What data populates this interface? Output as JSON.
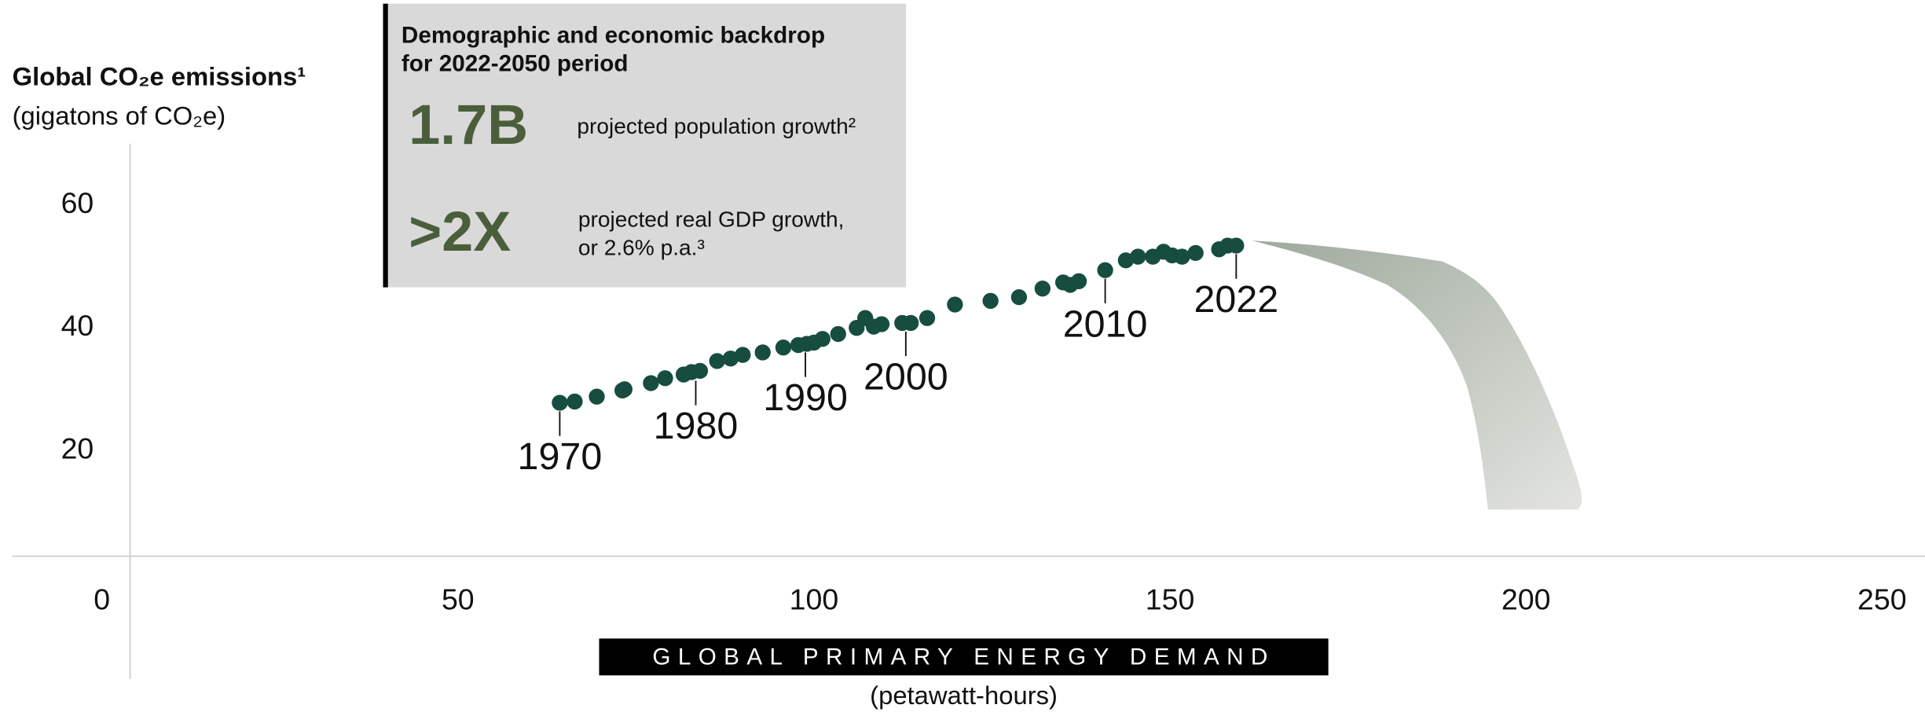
{
  "chart_data": {
    "type": "scatter",
    "y_axis_title": "Global CO₂e emissions¹",
    "y_axis_subtitle": "(gigatons of CO₂e)",
    "x_axis_title": "GLOBAL PRIMARY ENERGY DEMAND",
    "x_axis_subtitle": "(petawatt-hours)",
    "x": [
      64.3,
      66.4,
      69.5,
      73.1,
      73.4,
      77.1,
      79.1,
      81.7,
      82.8,
      84.0,
      86.4,
      88.3,
      90.0,
      92.8,
      95.7,
      97.8,
      99.0,
      100.0,
      101.2,
      103.4,
      106.0,
      107.2,
      108.4,
      109.5,
      112.4,
      113.6,
      115.9,
      119.8,
      124.8,
      128.8,
      132.1,
      135.0,
      136.0,
      137.2,
      140.9,
      143.8,
      145.5,
      147.6,
      149.1,
      150.3,
      151.7,
      153.6,
      156.9,
      158.1,
      159.3
    ],
    "values": [
      27.8,
      28.0,
      28.8,
      29.8,
      30.0,
      31.0,
      31.8,
      32.4,
      32.8,
      33.0,
      34.6,
      35.0,
      35.6,
      36.0,
      36.8,
      37.2,
      37.4,
      37.6,
      38.2,
      39.0,
      40.0,
      41.6,
      40.2,
      40.6,
      40.8,
      40.8,
      41.6,
      43.8,
      44.4,
      45.0,
      46.4,
      47.4,
      47.0,
      47.6,
      49.4,
      51.0,
      51.6,
      51.6,
      52.4,
      51.8,
      51.6,
      52.2,
      52.8,
      53.4,
      53.4
    ],
    "color": "#174d3f",
    "xlim": [
      0,
      250
    ],
    "ylim": [
      0,
      70
    ],
    "xticks": [
      0,
      50,
      100,
      150,
      200,
      250
    ],
    "yticks": [
      20,
      40,
      60
    ],
    "annotations": [
      {
        "text": "1970",
        "x": 64.3,
        "y": 27.8
      },
      {
        "text": "1980",
        "x": 83.4,
        "y": 32.8
      },
      {
        "text": "1990",
        "x": 98.8,
        "y": 37.4
      },
      {
        "text": "2000",
        "x": 112.9,
        "y": 40.8
      },
      {
        "text": "2010",
        "x": 140.9,
        "y": 49.4
      },
      {
        "text": "2022",
        "x": 159.3,
        "y": 53.4
      }
    ],
    "info_box": {
      "title": [
        "Demographic and economic backdrop",
        "for 2022-2050 period"
      ],
      "stats": [
        {
          "value": "1.7B",
          "text": [
            "projected population growth²"
          ]
        },
        {
          "value": ">2X",
          "text": [
            "projected real GDP growth,",
            "or 2.6% p.a.³"
          ]
        }
      ]
    }
  }
}
